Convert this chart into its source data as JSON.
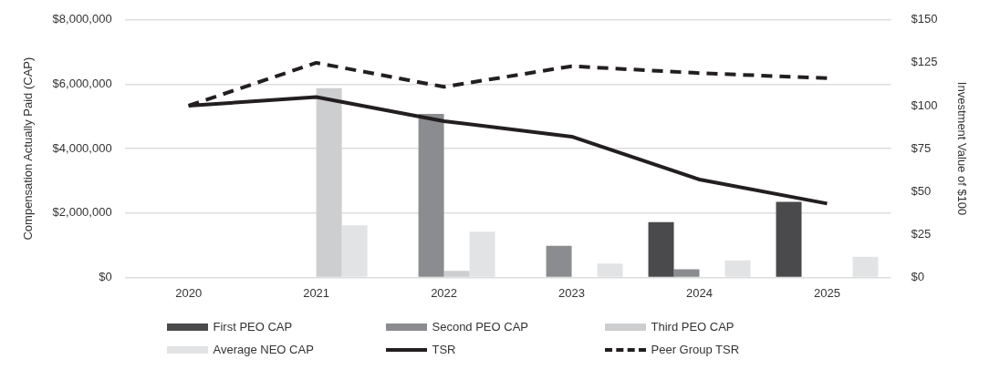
{
  "chart_data": {
    "type": "bar",
    "categories": [
      "2020",
      "2021",
      "2022",
      "2023",
      "2024",
      "2025"
    ],
    "ylabel": "Compensation Actually Paid (CAP)",
    "y2label": "Investment Value of $100",
    "ylim": [
      0,
      8000000
    ],
    "yticks": [
      {
        "value": 0,
        "label": "$0"
      },
      {
        "value": 2000000,
        "label": "$2,000,000"
      },
      {
        "value": 4000000,
        "label": "$4,000,000"
      },
      {
        "value": 6000000,
        "label": "$6,000,000"
      },
      {
        "value": 8000000,
        "label": "$8,000,000"
      }
    ],
    "y2lim": [
      0,
      150
    ],
    "y2ticks": [
      {
        "value": 0,
        "label": "$0"
      },
      {
        "value": 25,
        "label": "$25"
      },
      {
        "value": 50,
        "label": "$50"
      },
      {
        "value": 75,
        "label": "$75"
      },
      {
        "value": 100,
        "label": "$100"
      },
      {
        "value": 125,
        "label": "$125"
      },
      {
        "value": 150,
        "label": "$150"
      }
    ],
    "grid": "y",
    "legend": "bottom",
    "series": [
      {
        "name": "First PEO CAP",
        "color": "#4a4a4c",
        "values": [
          null,
          null,
          null,
          null,
          1720000,
          2350000
        ]
      },
      {
        "name": "Second PEO CAP",
        "color": "#8b8c8f",
        "values": [
          null,
          null,
          5080000,
          980000,
          250000,
          null
        ]
      },
      {
        "name": "Third PEO CAP",
        "color": "#cdced0",
        "values": [
          null,
          5880000,
          200000,
          null,
          null,
          null
        ]
      },
      {
        "name": "Average NEO CAP",
        "color": "#e2e3e4",
        "values": [
          null,
          1620000,
          1420000,
          430000,
          530000,
          640000
        ]
      },
      {
        "name": "TSR",
        "type": "line",
        "axis": "y2",
        "color": "#231f20",
        "line_style": "solid",
        "marker": "none",
        "values": [
          100,
          105,
          91,
          82,
          57,
          43
        ]
      },
      {
        "name": "Peer Group TSR",
        "type": "line",
        "axis": "y2",
        "color": "#231f20",
        "line_style": "dashed",
        "marker": "none",
        "values": [
          100,
          125,
          111,
          123,
          119,
          116
        ]
      }
    ]
  }
}
